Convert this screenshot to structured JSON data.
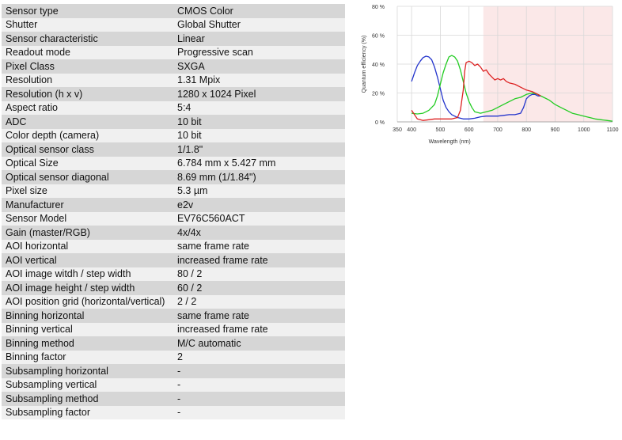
{
  "specs": [
    {
      "label": "Sensor type",
      "value": "CMOS Color"
    },
    {
      "label": "Shutter",
      "value": "Global Shutter"
    },
    {
      "label": "Sensor characteristic",
      "value": "Linear"
    },
    {
      "label": "Readout mode",
      "value": "Progressive scan"
    },
    {
      "label": "Pixel Class",
      "value": "SXGA"
    },
    {
      "label": "Resolution",
      "value": "1.31 Mpix"
    },
    {
      "label": "Resolution (h x v)",
      "value": "1280 x 1024 Pixel"
    },
    {
      "label": "Aspect ratio",
      "value": "5:4"
    },
    {
      "label": "ADC",
      "value": "10 bit"
    },
    {
      "label": "Color depth (camera)",
      "value": "10 bit"
    },
    {
      "label": "Optical sensor class",
      "value": "1/1.8\""
    },
    {
      "label": "Optical Size",
      "value": "6.784 mm x 5.427 mm"
    },
    {
      "label": "Optical sensor diagonal",
      "value": "8.69 mm (1/1.84\")"
    },
    {
      "label": "Pixel size",
      "value": "5.3 µm"
    },
    {
      "label": "Manufacturer",
      "value": "e2v"
    },
    {
      "label": "Sensor Model",
      "value": "EV76C560ACT"
    },
    {
      "label": "Gain (master/RGB)",
      "value": "4x/4x"
    },
    {
      "label": "AOI horizontal",
      "value": "same frame rate"
    },
    {
      "label": "AOI vertical",
      "value": "increased frame rate"
    },
    {
      "label": "AOI image witdh / step width",
      "value": "80 / 2"
    },
    {
      "label": "AOI image height / step width",
      "value": "60 / 2"
    },
    {
      "label": "AOI position grid (horizontal/vertical)",
      "value": "2 / 2"
    },
    {
      "label": "Binning horizontal",
      "value": "same frame rate"
    },
    {
      "label": "Binning vertical",
      "value": "increased frame rate"
    },
    {
      "label": "Binning method",
      "value": "M/C automatic"
    },
    {
      "label": "Binning factor",
      "value": "2"
    },
    {
      "label": "Subsampling horizontal",
      "value": "-"
    },
    {
      "label": "Subsampling vertical",
      "value": "-"
    },
    {
      "label": "Subsampling method",
      "value": "-"
    },
    {
      "label": "Subsampling factor",
      "value": "-"
    }
  ],
  "chart_data": {
    "type": "line",
    "title": "",
    "xlabel": "Wavelength (nm)",
    "ylabel": "Quantum efficiency (%)",
    "xlim": [
      350,
      1100
    ],
    "ylim": [
      0,
      80
    ],
    "xticks": [
      "350",
      "400",
      "500",
      "600",
      "700",
      "800",
      "900",
      "1000",
      "1100"
    ],
    "xtick_values": [
      350,
      400,
      500,
      600,
      700,
      800,
      900,
      1000,
      1100
    ],
    "yticks": [
      "0 %",
      "20 %",
      "40 %",
      "60 %",
      "80 %"
    ],
    "ytick_values": [
      0,
      20,
      40,
      60,
      80
    ],
    "grid": true,
    "shaded_region": {
      "x_from": 650,
      "x_to": 1100,
      "color": "#fbe8e8"
    },
    "series": [
      {
        "color": "#2233cc",
        "points": [
          [
            400,
            28
          ],
          [
            410,
            34
          ],
          [
            420,
            39
          ],
          [
            430,
            42
          ],
          [
            440,
            44.5
          ],
          [
            450,
            45.5
          ],
          [
            460,
            45
          ],
          [
            470,
            43
          ],
          [
            480,
            38
          ],
          [
            490,
            31
          ],
          [
            500,
            23
          ],
          [
            510,
            15
          ],
          [
            520,
            10
          ],
          [
            530,
            7
          ],
          [
            540,
            5
          ],
          [
            550,
            4
          ],
          [
            560,
            3
          ],
          [
            570,
            2.5
          ],
          [
            580,
            2
          ],
          [
            600,
            2
          ],
          [
            620,
            2.5
          ],
          [
            640,
            3.5
          ],
          [
            660,
            4
          ],
          [
            680,
            4
          ],
          [
            700,
            4
          ],
          [
            720,
            4.5
          ],
          [
            740,
            5
          ],
          [
            760,
            5
          ],
          [
            780,
            6
          ],
          [
            790,
            10
          ],
          [
            800,
            16
          ],
          [
            810,
            18
          ],
          [
            820,
            19
          ],
          [
            830,
            19
          ],
          [
            840,
            18
          ],
          [
            850,
            18
          ]
        ]
      },
      {
        "color": "#22cc22",
        "points": [
          [
            400,
            6
          ],
          [
            420,
            5.5
          ],
          [
            440,
            6
          ],
          [
            460,
            8
          ],
          [
            480,
            12
          ],
          [
            490,
            18
          ],
          [
            500,
            26
          ],
          [
            510,
            34
          ],
          [
            520,
            40
          ],
          [
            530,
            45
          ],
          [
            540,
            46
          ],
          [
            550,
            45
          ],
          [
            560,
            42
          ],
          [
            570,
            36
          ],
          [
            580,
            28
          ],
          [
            590,
            20
          ],
          [
            600,
            14
          ],
          [
            610,
            10
          ],
          [
            620,
            7
          ],
          [
            640,
            6
          ],
          [
            660,
            7
          ],
          [
            680,
            8
          ],
          [
            700,
            10
          ],
          [
            720,
            12
          ],
          [
            740,
            14
          ],
          [
            760,
            16
          ],
          [
            780,
            17
          ],
          [
            800,
            19
          ],
          [
            820,
            20
          ],
          [
            840,
            19
          ],
          [
            860,
            17
          ],
          [
            880,
            15
          ],
          [
            900,
            12
          ],
          [
            920,
            10
          ],
          [
            940,
            8
          ],
          [
            960,
            6
          ],
          [
            980,
            5
          ],
          [
            1000,
            4
          ],
          [
            1020,
            3
          ],
          [
            1040,
            2
          ],
          [
            1060,
            1.5
          ],
          [
            1080,
            1
          ],
          [
            1100,
            0.5
          ]
        ]
      },
      {
        "color": "#dd2222",
        "points": [
          [
            400,
            8
          ],
          [
            420,
            2
          ],
          [
            440,
            1
          ],
          [
            460,
            1.5
          ],
          [
            480,
            2
          ],
          [
            500,
            2
          ],
          [
            520,
            2
          ],
          [
            540,
            2
          ],
          [
            560,
            3
          ],
          [
            570,
            8
          ],
          [
            580,
            22
          ],
          [
            585,
            35
          ],
          [
            590,
            41
          ],
          [
            600,
            42
          ],
          [
            610,
            41
          ],
          [
            620,
            39
          ],
          [
            630,
            40
          ],
          [
            640,
            38
          ],
          [
            650,
            35
          ],
          [
            660,
            36
          ],
          [
            670,
            33
          ],
          [
            680,
            31
          ],
          [
            690,
            29
          ],
          [
            700,
            30
          ],
          [
            710,
            29
          ],
          [
            720,
            30
          ],
          [
            730,
            28
          ],
          [
            740,
            27
          ],
          [
            760,
            26
          ],
          [
            780,
            24
          ],
          [
            800,
            22
          ],
          [
            820,
            21
          ],
          [
            840,
            19
          ],
          [
            850,
            18
          ]
        ]
      }
    ]
  }
}
